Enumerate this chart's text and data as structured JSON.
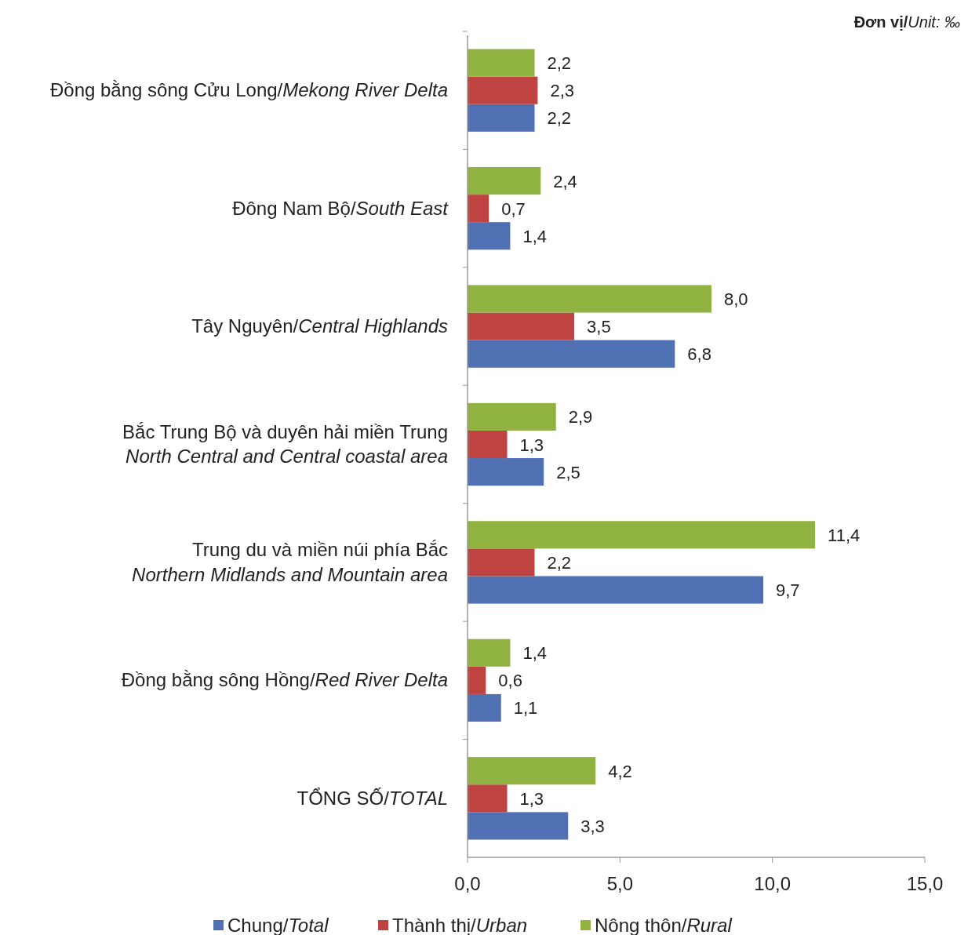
{
  "chart_data": {
    "type": "bar",
    "orientation": "horizontal",
    "categories": [
      "Đồng bằng sông Cửu Long/Mekong River Delta",
      "Đông Nam Bộ/South East",
      "Tây Nguyên/Central Highlands",
      "Bắc Trung Bộ và duyên hải miền Trung\nNorth Central and Central coastal area",
      "Trung du và miền núi phía Bắc\nNorthern Midlands and Mountain area",
      "Đồng bằng sông Hồng/Red River Delta",
      "TỔNG SỐ/TOTAL"
    ],
    "series": [
      {
        "name": "Chung/Total",
        "color": "#4f71b4",
        "values": [
          2.2,
          1.4,
          6.8,
          2.5,
          9.7,
          1.1,
          3.3
        ],
        "value_labels": [
          "2,2",
          "1,4",
          "6,8",
          "2,5",
          "9,7",
          "1,1",
          "3,3"
        ]
      },
      {
        "name": "Thành thị/Urban",
        "color": "#bf4340",
        "values": [
          2.3,
          0.7,
          3.5,
          1.3,
          2.2,
          0.6,
          1.3
        ],
        "value_labels": [
          "2,3",
          "0,7",
          "3,5",
          "1,3",
          "2,2",
          "0,6",
          "1,3"
        ]
      },
      {
        "name": "Nông thôn/Rural",
        "color": "#8fb240",
        "values": [
          2.2,
          2.4,
          8.0,
          2.9,
          11.4,
          1.4,
          4.2
        ],
        "value_labels": [
          "2,2",
          "2,4",
          "8,0",
          "2,9",
          "11,4",
          "1,4",
          "4,2"
        ]
      }
    ],
    "xlim": [
      0,
      15
    ],
    "xticks": [
      {
        "value": 0,
        "label": "0,0"
      },
      {
        "value": 5,
        "label": "5,0"
      },
      {
        "value": 10,
        "label": "10,0"
      },
      {
        "value": 15,
        "label": "15,0"
      }
    ],
    "grid": false,
    "legend": "bottom",
    "annotations": [
      "Đơn vị/Unit: ‰"
    ]
  }
}
